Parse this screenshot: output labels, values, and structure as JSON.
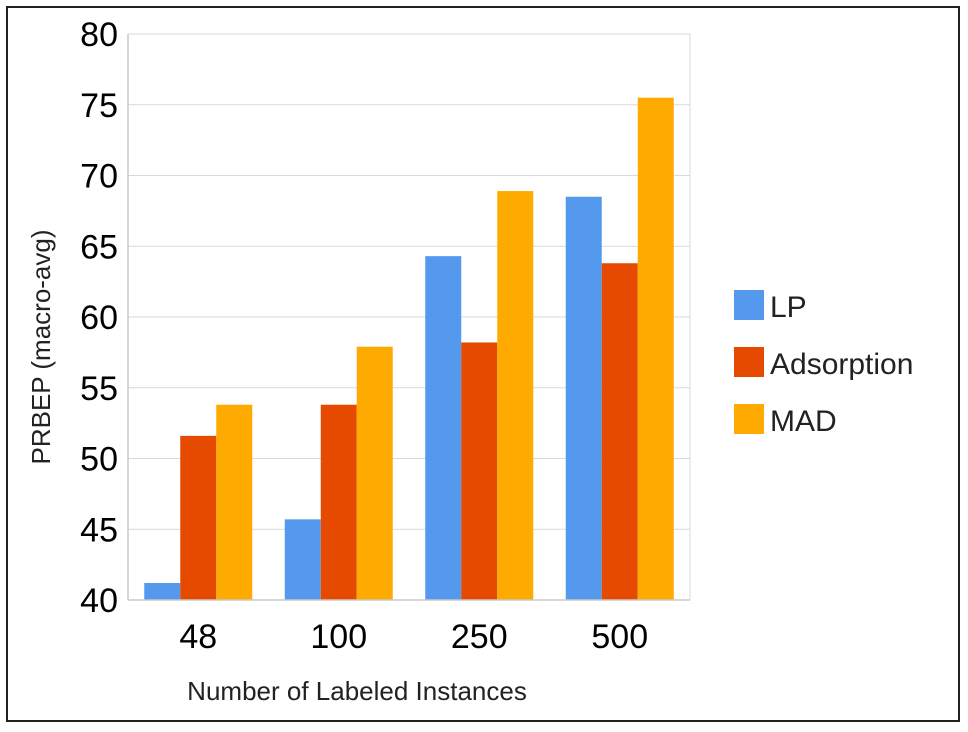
{
  "chart_data": {
    "type": "bar",
    "title": "",
    "xlabel": "Number of Labeled Instances",
    "ylabel": "PRBEP (macro-avg)",
    "categories": [
      "48",
      "100",
      "250",
      "500"
    ],
    "ylim": [
      40,
      80
    ],
    "yticks": [
      40,
      45,
      50,
      55,
      60,
      65,
      70,
      75,
      80
    ],
    "grid": true,
    "legend_position": "right",
    "series": [
      {
        "name": "LP",
        "color": "#5599ee",
        "values": [
          41.2,
          45.7,
          64.3,
          68.5
        ]
      },
      {
        "name": "Adsorption",
        "color": "#e64a00",
        "values": [
          51.6,
          53.8,
          58.2,
          63.8
        ]
      },
      {
        "name": "MAD",
        "color": "#ffaa00",
        "values": [
          53.8,
          57.9,
          68.9,
          75.5
        ]
      }
    ]
  }
}
